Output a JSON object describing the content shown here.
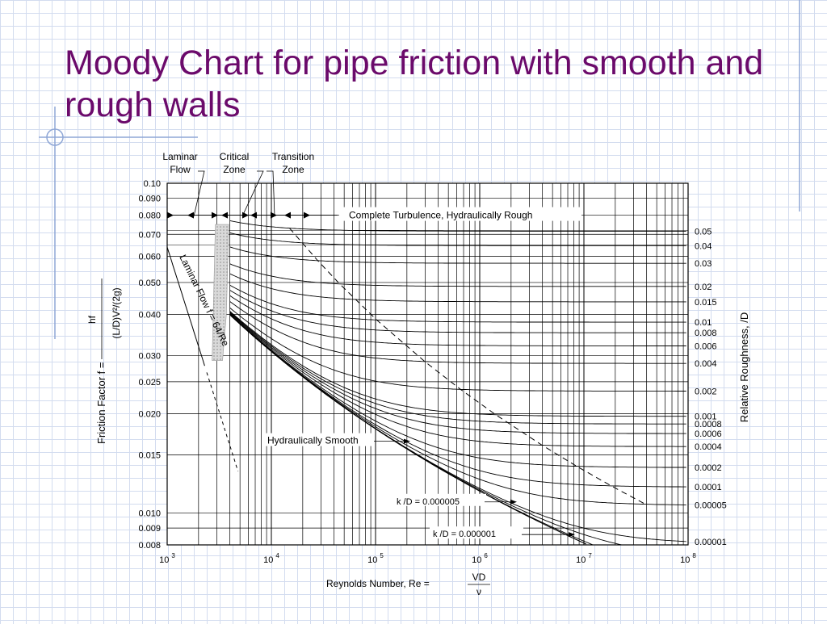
{
  "slide": {
    "title": "Moody Chart for pipe friction with smooth and rough walls"
  },
  "colors": {
    "title": "#6b0a6b",
    "background_grid": "#d3dcef",
    "decor_line": "#8fa7d6",
    "chart_ink": "#000000"
  },
  "chart_data": {
    "type": "line",
    "xscale": "log",
    "yscale": "log",
    "xlim": [
      1000,
      100000000
    ],
    "ylim": [
      0.008,
      0.1
    ],
    "grid": true,
    "xlabel": "Reynolds Number, Re =",
    "xlabel_fraction": {
      "numerator": "VD",
      "denominator": "ν"
    },
    "ylabel": "Friction Factor f =",
    "ylabel_fraction": {
      "numerator": "hf",
      "denominator": "(L/D)V²/(2g)"
    },
    "right_label": "Relative Roughness, /D",
    "x_ticks": [
      {
        "base": "10",
        "exp": "3",
        "value": 1000
      },
      {
        "base": "10",
        "exp": "4",
        "value": 10000
      },
      {
        "base": "10",
        "exp": "5",
        "value": 100000
      },
      {
        "base": "10",
        "exp": "6",
        "value": 1000000
      },
      {
        "base": "10",
        "exp": "7",
        "value": 10000000
      },
      {
        "base": "10",
        "exp": "8",
        "value": 100000000
      }
    ],
    "y_ticks": [
      {
        "label": "0.10",
        "value": 0.1
      },
      {
        "label": "0.090",
        "value": 0.09
      },
      {
        "label": "0.080",
        "value": 0.08
      },
      {
        "label": "0.070",
        "value": 0.07
      },
      {
        "label": "0.060",
        "value": 0.06
      },
      {
        "label": "0.050",
        "value": 0.05
      },
      {
        "label": "0.040",
        "value": 0.04
      },
      {
        "label": "0.030",
        "value": 0.03
      },
      {
        "label": "0.025",
        "value": 0.025
      },
      {
        "label": "0.020",
        "value": 0.02
      },
      {
        "label": "0.015",
        "value": 0.015
      },
      {
        "label": "0.010",
        "value": 0.01
      },
      {
        "label": "0.009",
        "value": 0.009
      },
      {
        "label": "0.008",
        "value": 0.008
      }
    ],
    "roughness_labels": [
      {
        "label": "0.05",
        "value": 0.05
      },
      {
        "label": "0.04",
        "value": 0.04
      },
      {
        "label": "0.03",
        "value": 0.03
      },
      {
        "label": "0.02",
        "value": 0.02
      },
      {
        "label": "0.015",
        "value": 0.015
      },
      {
        "label": "0.01",
        "value": 0.01
      },
      {
        "label": "0.008",
        "value": 0.008
      },
      {
        "label": "0.006",
        "value": 0.006
      },
      {
        "label": "0.004",
        "value": 0.004
      },
      {
        "label": "0.002",
        "value": 0.002
      },
      {
        "label": "0.001",
        "value": 0.001
      },
      {
        "label": "0.0008",
        "value": 0.0008
      },
      {
        "label": "0.0006",
        "value": 0.0006
      },
      {
        "label": "0.0004",
        "value": 0.0004
      },
      {
        "label": "0.0002",
        "value": 0.0002
      },
      {
        "label": "0.0001",
        "value": 0.0001
      },
      {
        "label": "0.00005",
        "value": 5e-05
      },
      {
        "label": "0.00001",
        "value": 1e-05
      }
    ],
    "extra_curves": [
      {
        "label": "k /D = 0.000005",
        "value": 5e-06
      },
      {
        "label": "k /D = 0.000001",
        "value": 1e-06
      }
    ],
    "zones": {
      "laminar": "Laminar\nFlow",
      "critical": "Critical\nZone",
      "transition": "Transition\nZone",
      "rough": "Complete Turbulence, Hydraulically Rough",
      "smooth": "Hydraulically Smooth"
    },
    "laminar_line_label": "Laminar Flow f = 64/Re",
    "critical_re_range": [
      2000,
      4000
    ]
  }
}
